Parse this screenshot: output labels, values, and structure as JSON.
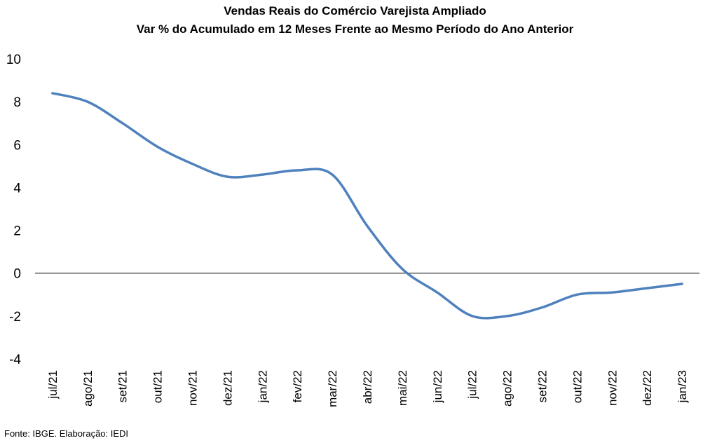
{
  "chart_data": {
    "type": "line",
    "title": "Vendas Reais do Comércio Varejista Ampliado",
    "subtitle": "Var % do Acumulado  em 12 Meses Frente ao Mesmo Período do Ano Anterior",
    "xlabel": "",
    "ylabel": "",
    "ylim": [
      -4,
      10
    ],
    "yticks": [
      -4,
      -2,
      0,
      2,
      4,
      6,
      8,
      10
    ],
    "grid": false,
    "legend": "none",
    "categories": [
      "jul/21",
      "ago/21",
      "set/21",
      "out/21",
      "nov/21",
      "dez/21",
      "jan/22",
      "fev/22",
      "mar/22",
      "abr/22",
      "mai/22",
      "jun/22",
      "jul/22",
      "ago/22",
      "set/22",
      "out/22",
      "nov/22",
      "dez/22",
      "jan/23"
    ],
    "series": [
      {
        "color": "#4f81bd",
        "values": [
          8.4,
          8.0,
          7.0,
          5.9,
          5.1,
          4.5,
          4.6,
          4.8,
          4.6,
          2.2,
          0.2,
          -0.9,
          -2.0,
          -2.0,
          -1.6,
          -1.0,
          -0.9,
          -0.7,
          -0.5
        ]
      }
    ],
    "source": "Fonte: IBGE. Elaboração: IEDI"
  }
}
